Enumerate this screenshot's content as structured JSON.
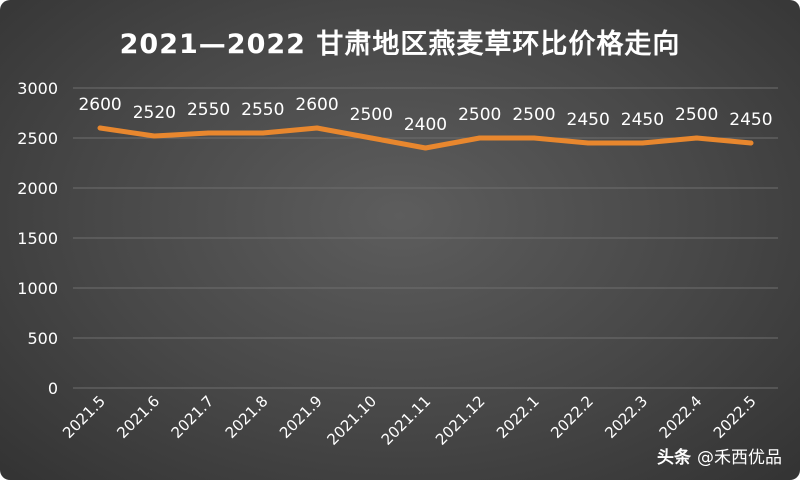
{
  "chart_data": {
    "type": "line",
    "title": "2021—2022  甘肃地区燕麦草环比价格走向",
    "xlabel": "",
    "ylabel": "",
    "categories": [
      "2021.5",
      "2021.6",
      "2021.7",
      "2021.8",
      "2021.9",
      "2021.10",
      "2021.11",
      "2021.12",
      "2022.1",
      "2022.2",
      "2022.3",
      "2022.4",
      "2022.5"
    ],
    "series": [
      {
        "values": [
          2600,
          2520,
          2550,
          2550,
          2600,
          2500,
          2400,
          2500,
          2500,
          2450,
          2450,
          2500,
          2450
        ]
      }
    ],
    "data_labels": [
      "2600",
      "2520",
      "2550",
      "2550",
      "2600",
      "2500",
      "2400",
      "2500",
      "2500",
      "2450",
      "2450",
      "2500",
      "2450"
    ],
    "ylim": [
      0,
      3000
    ],
    "yticks": [
      "0",
      "500",
      "1000",
      "1500",
      "2000",
      "2500",
      "3000"
    ],
    "grid": true,
    "legend": "none",
    "colors": {
      "line": "#E8872E",
      "background": "#4a4a4a",
      "text": "#ffffff",
      "grid": "#6e6e6e"
    }
  },
  "watermark": {
    "brand": "头条",
    "handle": "@禾西优品"
  }
}
